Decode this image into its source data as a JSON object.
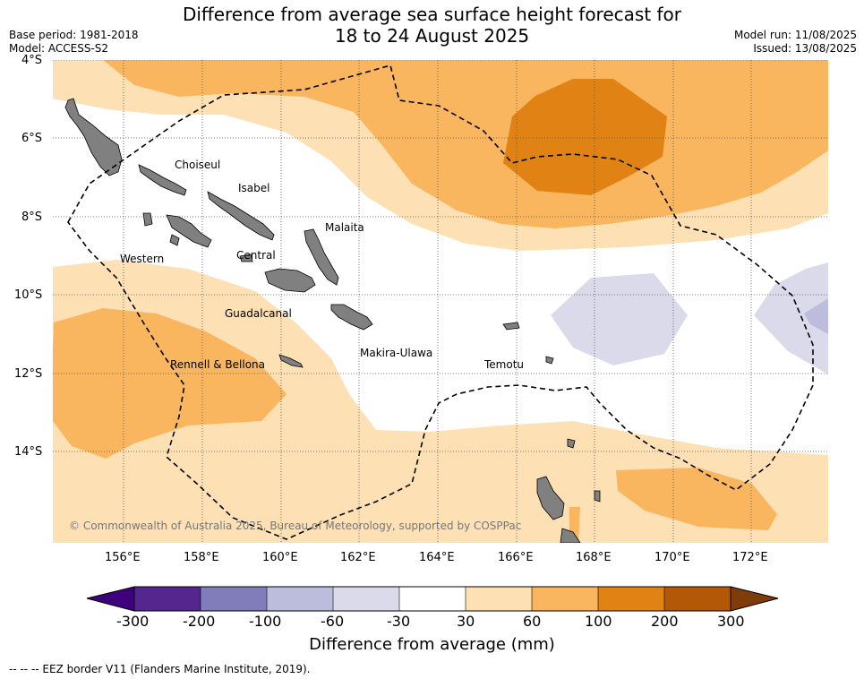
{
  "title_line1": "Difference from average sea surface height forecast for",
  "title_line2": "18 to 24 August 2025",
  "base_period": "Base period: 1981-2018",
  "model": "Model: ACCESS-S2",
  "model_run": "Model run: 11/08/2025",
  "issued": "Issued: 13/08/2025",
  "lat_ticks": [
    "4°S",
    "6°S",
    "8°S",
    "10°S",
    "12°S",
    "14°S"
  ],
  "lon_ticks": [
    "156°E",
    "158°E",
    "160°E",
    "162°E",
    "164°E",
    "166°E",
    "168°E",
    "170°E",
    "172°E"
  ],
  "provinces": [
    "Choiseul",
    "Isabel",
    "Malaita",
    "Western",
    "Central",
    "Guadalcanal",
    "Makira-Ulawa",
    "Rennell & Bellona",
    "Temotu"
  ],
  "copyright": "© Commonwealth of Australia 2025, Bureau of Meteorology, supported by COSPPac",
  "colorbar": {
    "labels": [
      "-300",
      "-200",
      "-100",
      "-60",
      "-30",
      "30",
      "60",
      "100",
      "200",
      "300"
    ],
    "colors": [
      "#3f007d",
      "#54278f",
      "#807dba",
      "#bcbddc",
      "#dadaeb",
      "#ffffff",
      "#fde0b4",
      "#f9b65f",
      "#e08214",
      "#b35806",
      "#7f3b08"
    ],
    "units_title": "Difference from average (mm)"
  },
  "eez_note": "-- -- -- EEZ border V11 (Flanders Marine Institute, 2019)."
}
